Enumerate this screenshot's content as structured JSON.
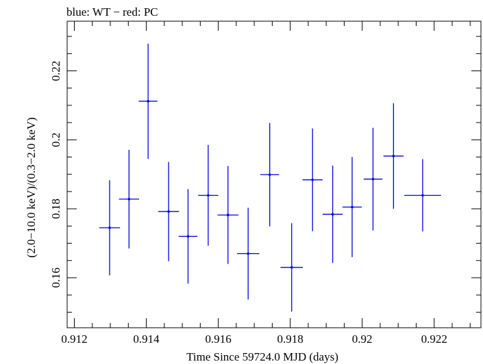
{
  "chart_data": {
    "type": "scatter",
    "title": "blue: WT − red: PC",
    "xlabel": "Time Since 59724.0 MJD (days)",
    "ylabel": "(2.0−10.0 keV)/(0.3−2.0 keV)",
    "xlim": [
      0.9118,
      0.9233
    ],
    "ylim": [
      0.1455,
      0.2344
    ],
    "x_major_ticks": [
      0.912,
      0.914,
      0.916,
      0.918,
      0.92,
      0.922
    ],
    "x_tick_labels": [
      "0.912",
      "0.914",
      "0.916",
      "0.918",
      "0.92",
      "0.922"
    ],
    "y_major_ticks": [
      0.16,
      0.18,
      0.2,
      0.22
    ],
    "y_tick_labels": [
      "0.16",
      "0.18",
      "0.2",
      "0.22"
    ],
    "grid": false,
    "series": [
      {
        "color": "#0000e0",
        "points": [
          {
            "x": 0.91298,
            "xerr": 0.00029,
            "y": 0.1745,
            "yerr": 0.0138
          },
          {
            "x": 0.91352,
            "xerr": 0.00028,
            "y": 0.1828,
            "yerr": 0.0143
          },
          {
            "x": 0.91405,
            "xerr": 0.00026,
            "y": 0.2112,
            "yerr": 0.0167
          },
          {
            "x": 0.91462,
            "xerr": 0.00029,
            "y": 0.1792,
            "yerr": 0.0144
          },
          {
            "x": 0.91516,
            "xerr": 0.00026,
            "y": 0.172,
            "yerr": 0.0137
          },
          {
            "x": 0.91572,
            "xerr": 0.00028,
            "y": 0.1839,
            "yerr": 0.0146
          },
          {
            "x": 0.91627,
            "xerr": 0.00029,
            "y": 0.1782,
            "yerr": 0.0142
          },
          {
            "x": 0.91683,
            "xerr": 0.00031,
            "y": 0.167,
            "yerr": 0.0133
          },
          {
            "x": 0.91743,
            "xerr": 0.00026,
            "y": 0.1899,
            "yerr": 0.015
          },
          {
            "x": 0.91804,
            "xerr": 0.00031,
            "y": 0.163,
            "yerr": 0.0128
          },
          {
            "x": 0.91862,
            "xerr": 0.00028,
            "y": 0.1884,
            "yerr": 0.0149
          },
          {
            "x": 0.91918,
            "xerr": 0.00028,
            "y": 0.1784,
            "yerr": 0.0141
          },
          {
            "x": 0.91972,
            "xerr": 0.00027,
            "y": 0.1805,
            "yerr": 0.0145
          },
          {
            "x": 0.9203,
            "xerr": 0.00026,
            "y": 0.1886,
            "yerr": 0.0149
          },
          {
            "x": 0.92087,
            "xerr": 0.00028,
            "y": 0.1953,
            "yerr": 0.0153
          },
          {
            "x": 0.92168,
            "xerr": 0.00051,
            "y": 0.1839,
            "yerr": 0.0105
          }
        ]
      }
    ]
  }
}
